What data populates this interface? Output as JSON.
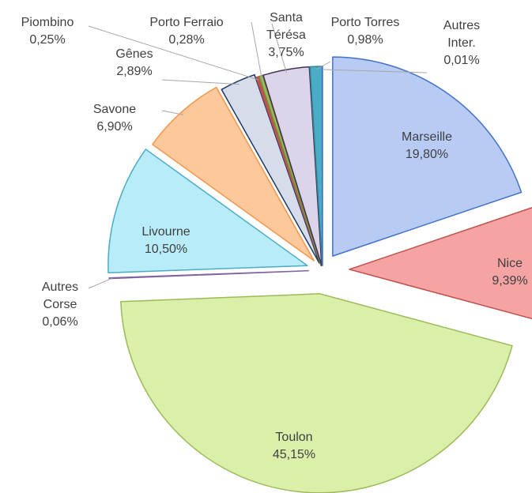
{
  "chart_data": {
    "type": "pie",
    "categories": [
      "Marseille",
      "Nice",
      "Toulon",
      "Autres Corse",
      "Livourne",
      "Savone",
      "Gênes",
      "Piombino",
      "Porto Ferraio",
      "Santa Térésa",
      "Porto Torres",
      "Autres Inter."
    ],
    "values": [
      19.8,
      9.39,
      45.15,
      0.06,
      10.5,
      6.9,
      2.89,
      0.25,
      0.28,
      3.75,
      0.98,
      0.01
    ],
    "value_labels": [
      "19,80%",
      "9,39%",
      "45,15%",
      "0,06%",
      "10,50%",
      "6,90%",
      "2,89%",
      "0,25%",
      "0,28%",
      "3,75%",
      "0,98%",
      "0,01%"
    ],
    "colors": [
      "#b7cbf5",
      "#f5a3a3",
      "#d9efaa",
      "#8064a2",
      "#b9ecf9",
      "#fcc89c",
      "#d6dcea",
      "#c0504d",
      "#9bbb59",
      "#dcd4e8",
      "#4bacc6",
      "#dde7f5"
    ],
    "edge_colors": [
      "#4472c4",
      "#c0504d",
      "#9bbb59",
      "#8064a2",
      "#4bacc6",
      "#f79646",
      "#1f3864",
      "#c0504d",
      "#76923c",
      "#403152",
      "#31859c",
      "#4472c4"
    ]
  }
}
